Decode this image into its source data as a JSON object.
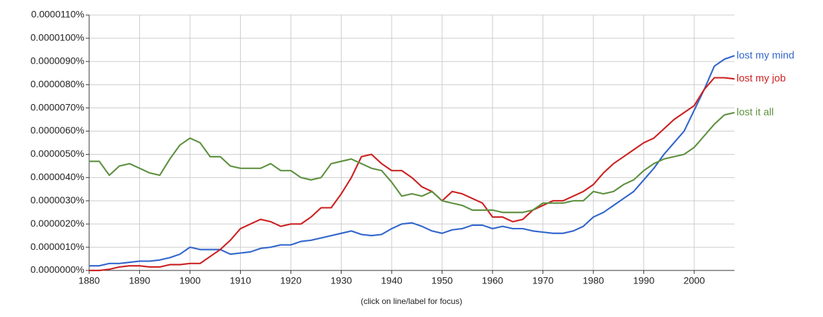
{
  "chart_data": {
    "type": "line",
    "note": "(click on line/label for focus)",
    "x": [
      1880,
      1882,
      1884,
      1886,
      1888,
      1890,
      1892,
      1894,
      1896,
      1898,
      1900,
      1902,
      1904,
      1906,
      1908,
      1910,
      1912,
      1914,
      1916,
      1918,
      1920,
      1922,
      1924,
      1926,
      1928,
      1930,
      1932,
      1934,
      1936,
      1938,
      1940,
      1942,
      1944,
      1946,
      1948,
      1950,
      1952,
      1954,
      1956,
      1958,
      1960,
      1962,
      1964,
      1966,
      1968,
      1970,
      1972,
      1974,
      1976,
      1978,
      1980,
      1982,
      1984,
      1986,
      1988,
      1990,
      1992,
      1994,
      1996,
      1998,
      2000,
      2002,
      2004,
      2006,
      2008
    ],
    "xlim": [
      1880,
      2008
    ],
    "xticks": [
      1880,
      1890,
      1900,
      1910,
      1920,
      1930,
      1940,
      1950,
      1960,
      1970,
      1980,
      1990,
      2000
    ],
    "ylim": [
      0,
      1.1e-05
    ],
    "yticks": [
      {
        "value": 0,
        "label": "0.0000000%"
      },
      {
        "value": 1e-06,
        "label": "0.0000010%"
      },
      {
        "value": 2e-06,
        "label": "0.0000020%"
      },
      {
        "value": 3e-06,
        "label": "0.0000030%"
      },
      {
        "value": 4e-06,
        "label": "0.0000040%"
      },
      {
        "value": 5e-06,
        "label": "0.0000050%"
      },
      {
        "value": 6e-06,
        "label": "0.0000060%"
      },
      {
        "value": 7e-06,
        "label": "0.0000070%"
      },
      {
        "value": 8e-06,
        "label": "0.0000080%"
      },
      {
        "value": 9e-06,
        "label": "0.0000090%"
      },
      {
        "value": 1e-05,
        "label": "0.0000100%"
      },
      {
        "value": 1.1e-05,
        "label": "0.0000110%"
      }
    ],
    "grid": true,
    "series": [
      {
        "name": "lost my mind",
        "color": "#3366cc",
        "values": [
          2e-07,
          2e-07,
          3e-07,
          3e-07,
          3.5e-07,
          4e-07,
          4e-07,
          4.5e-07,
          5.5e-07,
          7e-07,
          1e-06,
          9e-07,
          9e-07,
          9e-07,
          7e-07,
          7.5e-07,
          8e-07,
          9.5e-07,
          1e-06,
          1.1e-06,
          1.1e-06,
          1.25e-06,
          1.3e-06,
          1.4e-06,
          1.5e-06,
          1.6e-06,
          1.7e-06,
          1.55e-06,
          1.5e-06,
          1.55e-06,
          1.8e-06,
          2e-06,
          2.05e-06,
          1.9e-06,
          1.7e-06,
          1.6e-06,
          1.75e-06,
          1.8e-06,
          1.95e-06,
          1.95e-06,
          1.8e-06,
          1.9e-06,
          1.8e-06,
          1.8e-06,
          1.7e-06,
          1.65e-06,
          1.6e-06,
          1.6e-06,
          1.7e-06,
          1.9e-06,
          2.3e-06,
          2.5e-06,
          2.8e-06,
          3.1e-06,
          3.4e-06,
          3.9e-06,
          4.4e-06,
          5e-06,
          5.5e-06,
          6e-06,
          6.9e-06,
          7.8e-06,
          8.8e-06,
          9.1e-06,
          9.25e-06
        ]
      },
      {
        "name": "lost my job",
        "color": "#cc2222",
        "values": [
          0,
          0,
          5e-08,
          1.5e-07,
          2e-07,
          2e-07,
          1.5e-07,
          1.5e-07,
          2.5e-07,
          2.5e-07,
          3e-07,
          3e-07,
          6e-07,
          9e-07,
          1.3e-06,
          1.8e-06,
          2e-06,
          2.2e-06,
          2.1e-06,
          1.9e-06,
          2e-06,
          2e-06,
          2.3e-06,
          2.7e-06,
          2.7e-06,
          3.3e-06,
          4e-06,
          4.9e-06,
          5e-06,
          4.6e-06,
          4.3e-06,
          4.3e-06,
          4e-06,
          3.6e-06,
          3.4e-06,
          3e-06,
          3.4e-06,
          3.3e-06,
          3.1e-06,
          2.9e-06,
          2.3e-06,
          2.3e-06,
          2.1e-06,
          2.2e-06,
          2.6e-06,
          2.8e-06,
          3e-06,
          3e-06,
          3.2e-06,
          3.4e-06,
          3.7e-06,
          4.2e-06,
          4.6e-06,
          4.9e-06,
          5.2e-06,
          5.5e-06,
          5.7e-06,
          6.1e-06,
          6.5e-06,
          6.8e-06,
          7.1e-06,
          7.8e-06,
          8.3e-06,
          8.3e-06,
          8.25e-06
        ]
      },
      {
        "name": "lost it all",
        "color": "#5f9141",
        "values": [
          4.7e-06,
          4.7e-06,
          4.1e-06,
          4.5e-06,
          4.6e-06,
          4.4e-06,
          4.2e-06,
          4.1e-06,
          4.8e-06,
          5.4e-06,
          5.7e-06,
          5.5e-06,
          4.9e-06,
          4.9e-06,
          4.5e-06,
          4.4e-06,
          4.4e-06,
          4.4e-06,
          4.6e-06,
          4.3e-06,
          4.3e-06,
          4e-06,
          3.9e-06,
          4e-06,
          4.6e-06,
          4.7e-06,
          4.8e-06,
          4.6e-06,
          4.4e-06,
          4.3e-06,
          3.8e-06,
          3.2e-06,
          3.3e-06,
          3.2e-06,
          3.4e-06,
          3e-06,
          2.9e-06,
          2.8e-06,
          2.6e-06,
          2.6e-06,
          2.6e-06,
          2.5e-06,
          2.5e-06,
          2.5e-06,
          2.6e-06,
          2.9e-06,
          2.9e-06,
          2.9e-06,
          3e-06,
          3e-06,
          3.4e-06,
          3.3e-06,
          3.4e-06,
          3.7e-06,
          3.9e-06,
          4.3e-06,
          4.6e-06,
          4.8e-06,
          4.9e-06,
          5e-06,
          5.3e-06,
          5.8e-06,
          6.3e-06,
          6.7e-06,
          6.8e-06
        ]
      }
    ]
  }
}
